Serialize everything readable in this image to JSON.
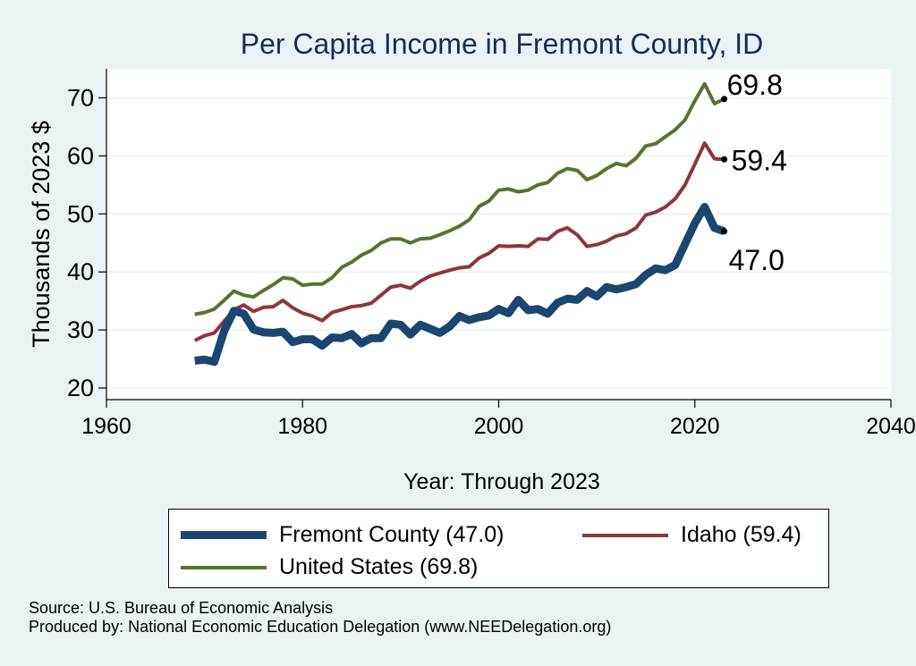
{
  "chart_data": {
    "type": "line",
    "title": "Per Capita Income in Fremont County, ID",
    "xlabel": "Year: Through 2023",
    "ylabel": "Thousands of 2023 $",
    "xlim": [
      1960,
      2040
    ],
    "ylim": [
      18,
      75
    ],
    "xticks": [
      1960,
      1980,
      2000,
      2020,
      2040
    ],
    "yticks": [
      20,
      30,
      40,
      50,
      60,
      70
    ],
    "grid": true,
    "x": [
      1969,
      1970,
      1971,
      1972,
      1973,
      1974,
      1975,
      1976,
      1977,
      1978,
      1979,
      1980,
      1981,
      1982,
      1983,
      1984,
      1985,
      1986,
      1987,
      1988,
      1989,
      1990,
      1991,
      1992,
      1993,
      1994,
      1995,
      1996,
      1997,
      1998,
      1999,
      2000,
      2001,
      2002,
      2003,
      2004,
      2005,
      2006,
      2007,
      2008,
      2009,
      2010,
      2011,
      2012,
      2013,
      2014,
      2015,
      2016,
      2017,
      2018,
      2019,
      2020,
      2021,
      2022,
      2023
    ],
    "series": [
      {
        "name": "Fremont County",
        "color": "#1a476f",
        "end_label": "47.0",
        "values": [
          24.7,
          24.9,
          24.5,
          29.8,
          33.3,
          32.8,
          30.1,
          29.6,
          29.5,
          29.7,
          27.9,
          28.4,
          28.4,
          27.3,
          28.7,
          28.6,
          29.3,
          27.7,
          28.6,
          28.6,
          31.1,
          30.9,
          29.2,
          30.9,
          30.2,
          29.5,
          30.6,
          32.4,
          31.7,
          32.2,
          32.5,
          33.6,
          32.9,
          35.2,
          33.4,
          33.6,
          32.8,
          34.7,
          35.4,
          35.2,
          36.7,
          35.8,
          37.4,
          37.0,
          37.4,
          37.9,
          39.5,
          40.6,
          40.3,
          41.2,
          44.8,
          48.4,
          51.2,
          47.6,
          47.0
        ]
      },
      {
        "name": "Idaho",
        "color": "#90353b",
        "end_label": "59.4",
        "values": [
          28.2,
          29.0,
          29.5,
          31.5,
          33.5,
          34.3,
          33.2,
          33.9,
          34.0,
          35.1,
          33.8,
          32.9,
          32.4,
          31.6,
          33.0,
          33.5,
          34.0,
          34.2,
          34.6,
          36.0,
          37.4,
          37.7,
          37.2,
          38.4,
          39.3,
          39.8,
          40.3,
          40.7,
          40.9,
          42.4,
          43.2,
          44.5,
          44.4,
          44.5,
          44.4,
          45.7,
          45.6,
          47.0,
          47.6,
          46.4,
          44.4,
          44.7,
          45.3,
          46.2,
          46.6,
          47.6,
          49.8,
          50.3,
          51.2,
          52.6,
          55.0,
          58.6,
          62.2,
          59.5,
          59.4
        ]
      },
      {
        "name": "United States",
        "color": "#55752f",
        "end_label": "69.8",
        "values": [
          32.7,
          33.0,
          33.6,
          35.1,
          36.7,
          36.0,
          35.7,
          36.8,
          37.8,
          39.0,
          38.8,
          37.7,
          37.9,
          37.9,
          39.0,
          40.8,
          41.7,
          42.9,
          43.7,
          45.0,
          45.7,
          45.7,
          45.0,
          45.7,
          45.8,
          46.4,
          47.1,
          47.9,
          49.0,
          51.3,
          52.2,
          54.1,
          54.3,
          53.8,
          54.1,
          55.0,
          55.4,
          57.0,
          57.8,
          57.5,
          55.9,
          56.6,
          57.8,
          58.7,
          58.3,
          59.6,
          61.7,
          62.1,
          63.3,
          64.5,
          66.2,
          69.5,
          72.4,
          69.0,
          69.8
        ]
      }
    ],
    "legend": [
      {
        "label": "Fremont County (47.0)",
        "color": "#1a476f"
      },
      {
        "label": "Idaho (59.4)",
        "color": "#90353b"
      },
      {
        "label": "United States (69.8)",
        "color": "#55752f"
      }
    ],
    "legend_position": "bottom"
  },
  "notes": {
    "source": "Source: U.S. Bureau of Economic Analysis",
    "produced_by": "Produced by: National Economic Education Delegation (www.NEEDelegation.org)"
  }
}
